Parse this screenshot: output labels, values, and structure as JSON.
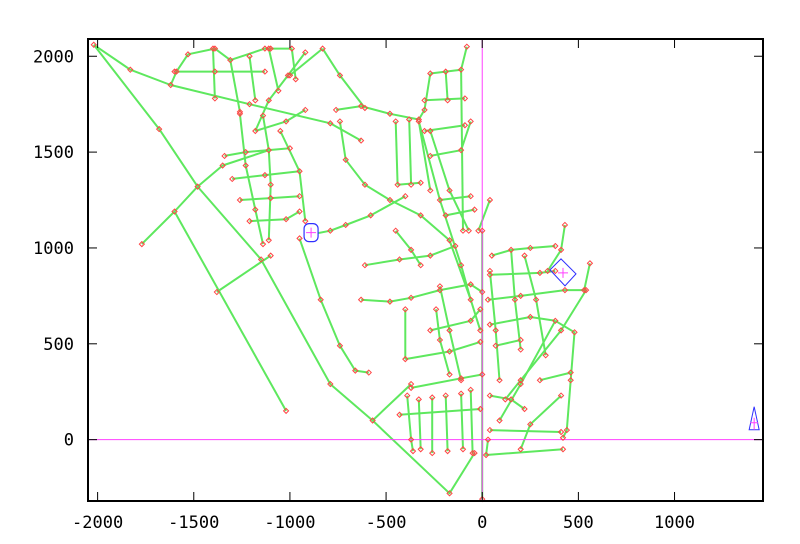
{
  "chart_data": {
    "type": "network",
    "title": "",
    "xlabel": "",
    "ylabel": "",
    "xlim": [
      -2050,
      1460
    ],
    "ylim": [
      -320,
      2090
    ],
    "xticks": [
      -2000,
      -1500,
      -1000,
      -500,
      0,
      500,
      1000
    ],
    "yticks": [
      0,
      500,
      1000,
      1500,
      2000
    ],
    "xtick_labels": [
      "-2000",
      "-1500",
      "-1000",
      "-500",
      "0",
      "500",
      "1000"
    ],
    "ytick_labels": [
      "0",
      "500",
      "1000",
      "1500",
      "2000"
    ],
    "grid": false,
    "axis_lines": {
      "x_zero": true,
      "y_zero": true
    },
    "colors": {
      "pipe": "#5ee85e",
      "junction": "#ff4444",
      "axis_zero": "#ff40ff",
      "tank": "#3030ff",
      "tank_cross": "#ff40ff",
      "frame": "#000000"
    },
    "tank": {
      "x": -890,
      "y": 1080
    },
    "reservoir": {
      "x": 420,
      "y": 870
    },
    "source_marker": {
      "x": 1414,
      "y": 104
    },
    "links": [
      [
        [
          -2020,
          2060
        ],
        [
          -1830,
          1930
        ],
        [
          -1620,
          1850
        ],
        [
          -1210,
          1750
        ],
        [
          -790,
          1650
        ],
        [
          -630,
          1560
        ]
      ],
      [
        [
          -2020,
          2060
        ],
        [
          -1680,
          1620
        ],
        [
          -1480,
          1320
        ],
        [
          -1150,
          940
        ],
        [
          -790,
          290
        ],
        [
          -570,
          100
        ],
        [
          -170,
          -280
        ],
        [
          -40,
          -70
        ]
      ],
      [
        [
          -1770,
          1020
        ],
        [
          -1600,
          1190
        ],
        [
          -1480,
          1320
        ],
        [
          -1350,
          1430
        ],
        [
          -1110,
          1510
        ]
      ],
      [
        [
          -1600,
          1190
        ],
        [
          -1020,
          150
        ]
      ],
      [
        [
          -1380,
          770
        ],
        [
          -1100,
          960
        ]
      ],
      [
        [
          -570,
          100
        ],
        [
          -370,
          290
        ]
      ],
      [
        [
          -1530,
          2010
        ],
        [
          -1590,
          1920
        ],
        [
          -1620,
          1850
        ]
      ],
      [
        [
          -1530,
          2010
        ],
        [
          -1390,
          2040
        ],
        [
          -1310,
          1980
        ],
        [
          -1130,
          2040
        ],
        [
          -1100,
          2040
        ],
        [
          -990,
          2040
        ]
      ],
      [
        [
          -1400,
          2040
        ],
        [
          -1390,
          1780
        ]
      ],
      [
        [
          -1310,
          1980
        ],
        [
          -1260,
          1710
        ]
      ],
      [
        [
          -1210,
          2000
        ],
        [
          -1180,
          1770
        ]
      ],
      [
        [
          -1110,
          2040
        ],
        [
          -1060,
          1820
        ]
      ],
      [
        [
          -990,
          2040
        ],
        [
          -970,
          1880
        ]
      ],
      [
        [
          -830,
          2040
        ],
        [
          -740,
          1900
        ],
        [
          -610,
          1730
        ]
      ],
      [
        [
          -920,
          2020
        ],
        [
          -1010,
          1900
        ],
        [
          -1110,
          1770
        ],
        [
          -1180,
          1610
        ]
      ],
      [
        [
          -830,
          2040
        ],
        [
          -1000,
          1900
        ]
      ],
      [
        [
          -1600,
          1920
        ],
        [
          -1390,
          1920
        ],
        [
          -1130,
          1920
        ]
      ],
      [
        [
          -1260,
          1700
        ],
        [
          -1230,
          1430
        ],
        [
          -1180,
          1200
        ],
        [
          -1140,
          1020
        ]
      ],
      [
        [
          -1140,
          1690
        ],
        [
          -1110,
          1510
        ],
        [
          -1100,
          1330
        ],
        [
          -1110,
          1040
        ]
      ],
      [
        [
          -1340,
          1480
        ],
        [
          -1230,
          1500
        ],
        [
          -1000,
          1520
        ]
      ],
      [
        [
          -1300,
          1360
        ],
        [
          -1130,
          1380
        ],
        [
          -950,
          1400
        ]
      ],
      [
        [
          -1260,
          1250
        ],
        [
          -1100,
          1260
        ],
        [
          -950,
          1270
        ]
      ],
      [
        [
          -1210,
          1140
        ],
        [
          -1020,
          1150
        ],
        [
          -950,
          1190
        ]
      ],
      [
        [
          -1050,
          1610
        ],
        [
          -950,
          1400
        ],
        [
          -920,
          1140
        ]
      ],
      [
        [
          -1180,
          1610
        ],
        [
          -1020,
          1660
        ],
        [
          -920,
          1720
        ]
      ],
      [
        [
          -950,
          1050
        ],
        [
          -840,
          730
        ],
        [
          -740,
          490
        ],
        [
          -660,
          360
        ],
        [
          -590,
          350
        ]
      ],
      [
        [
          -890,
          1070
        ],
        [
          -790,
          1090
        ],
        [
          -710,
          1120
        ],
        [
          -580,
          1170
        ],
        [
          -400,
          1270
        ]
      ],
      [
        [
          -740,
          1660
        ],
        [
          -710,
          1460
        ],
        [
          -610,
          1330
        ],
        [
          -480,
          1250
        ],
        [
          -320,
          1170
        ],
        [
          -170,
          1040
        ],
        [
          -60,
          730
        ],
        [
          -10,
          570
        ]
      ],
      [
        [
          -760,
          1720
        ],
        [
          -630,
          1740
        ],
        [
          -480,
          1700
        ],
        [
          -330,
          1670
        ]
      ],
      [
        [
          -450,
          1660
        ],
        [
          -440,
          1330
        ]
      ],
      [
        [
          -380,
          1670
        ],
        [
          -370,
          1330
        ]
      ],
      [
        [
          -330,
          1660
        ],
        [
          -270,
          1300
        ]
      ],
      [
        [
          -440,
          1330
        ],
        [
          -320,
          1340
        ]
      ],
      [
        [
          -270,
          1910
        ],
        [
          -110,
          1930
        ],
        [
          -80,
          2050
        ]
      ],
      [
        [
          -270,
          1910
        ],
        [
          -300,
          1720
        ],
        [
          -330,
          1670
        ]
      ],
      [
        [
          -190,
          1920
        ],
        [
          -180,
          1770
        ]
      ],
      [
        [
          -110,
          1930
        ],
        [
          -100,
          1090
        ]
      ],
      [
        [
          -300,
          1770
        ],
        [
          -90,
          1780
        ]
      ],
      [
        [
          -300,
          1610
        ],
        [
          -90,
          1640
        ]
      ],
      [
        [
          -270,
          1480
        ],
        [
          -110,
          1510
        ],
        [
          -60,
          1660
        ]
      ],
      [
        [
          -330,
          1660
        ],
        [
          -220,
          1250
        ],
        [
          -110,
          910
        ],
        [
          -60,
          730
        ]
      ],
      [
        [
          -270,
          1610
        ],
        [
          -170,
          1300
        ],
        [
          -70,
          1090
        ]
      ],
      [
        [
          -220,
          1250
        ],
        [
          -60,
          1270
        ]
      ],
      [
        [
          -190,
          1170
        ],
        [
          -40,
          1200
        ]
      ],
      [
        [
          -20,
          1090
        ],
        [
          40,
          1250
        ]
      ],
      [
        [
          -610,
          910
        ],
        [
          -430,
          940
        ],
        [
          -270,
          960
        ],
        [
          -140,
          1010
        ]
      ],
      [
        [
          -450,
          1090
        ],
        [
          -370,
          990
        ],
        [
          -320,
          910
        ]
      ],
      [
        [
          -630,
          730
        ],
        [
          -480,
          720
        ],
        [
          -370,
          740
        ],
        [
          -220,
          780
        ],
        [
          -60,
          810
        ],
        [
          0,
          770
        ]
      ],
      [
        [
          -400,
          680
        ],
        [
          -400,
          420
        ]
      ],
      [
        [
          -400,
          420
        ],
        [
          -170,
          460
        ],
        [
          -10,
          510
        ]
      ],
      [
        [
          -240,
          680
        ],
        [
          -220,
          520
        ],
        [
          -170,
          340
        ]
      ],
      [
        [
          -270,
          570
        ],
        [
          -60,
          620
        ],
        [
          -10,
          680
        ]
      ],
      [
        [
          -370,
          270
        ],
        [
          -110,
          320
        ],
        [
          0,
          340
        ]
      ],
      [
        [
          -390,
          230
        ],
        [
          -370,
          0
        ],
        [
          -360,
          -60
        ]
      ],
      [
        [
          -330,
          210
        ],
        [
          -320,
          -50
        ]
      ],
      [
        [
          -260,
          220
        ],
        [
          -260,
          -70
        ]
      ],
      [
        [
          -190,
          230
        ],
        [
          -180,
          -60
        ]
      ],
      [
        [
          -110,
          240
        ],
        [
          -100,
          -50
        ]
      ],
      [
        [
          -60,
          260
        ],
        [
          -50,
          -70
        ]
      ],
      [
        [
          -430,
          130
        ],
        [
          -10,
          160
        ]
      ],
      [
        [
          -220,
          800
        ],
        [
          -170,
          570
        ],
        [
          -110,
          310
        ]
      ],
      [
        [
          0,
          1090
        ],
        [
          0,
          -310
        ]
      ],
      [
        [
          50,
          960
        ],
        [
          150,
          990
        ],
        [
          250,
          1000
        ],
        [
          380,
          1010
        ]
      ],
      [
        [
          40,
          880
        ],
        [
          70,
          570
        ],
        [
          90,
          310
        ]
      ],
      [
        [
          150,
          990
        ],
        [
          170,
          730
        ],
        [
          200,
          470
        ]
      ],
      [
        [
          220,
          960
        ],
        [
          280,
          730
        ],
        [
          330,
          440
        ]
      ],
      [
        [
          40,
          860
        ],
        [
          300,
          870
        ],
        [
          380,
          880
        ]
      ],
      [
        [
          30,
          730
        ],
        [
          200,
          750
        ],
        [
          430,
          780
        ],
        [
          540,
          780
        ]
      ],
      [
        [
          560,
          920
        ],
        [
          530,
          780
        ]
      ],
      [
        [
          40,
          600
        ],
        [
          250,
          640
        ],
        [
          380,
          620
        ]
      ],
      [
        [
          70,
          490
        ],
        [
          200,
          520
        ]
      ],
      [
        [
          380,
          620
        ],
        [
          480,
          560
        ],
        [
          460,
          310
        ],
        [
          440,
          50
        ],
        [
          420,
          10
        ]
      ],
      [
        [
          380,
          620
        ],
        [
          200,
          290
        ],
        [
          90,
          100
        ]
      ],
      [
        [
          300,
          310
        ],
        [
          460,
          350
        ]
      ],
      [
        [
          40,
          230
        ],
        [
          150,
          210
        ],
        [
          220,
          160
        ]
      ],
      [
        [
          40,
          50
        ],
        [
          410,
          40
        ]
      ],
      [
        [
          30,
          0
        ],
        [
          20,
          -80
        ],
        [
          420,
          -50
        ]
      ],
      [
        [
          540,
          780
        ],
        [
          410,
          570
        ],
        [
          200,
          310
        ],
        [
          120,
          210
        ]
      ],
      [
        [
          430,
          1120
        ],
        [
          410,
          990
        ],
        [
          340,
          880
        ]
      ],
      [
        [
          200,
          -50
        ],
        [
          250,
          80
        ],
        [
          410,
          230
        ]
      ]
    ]
  }
}
